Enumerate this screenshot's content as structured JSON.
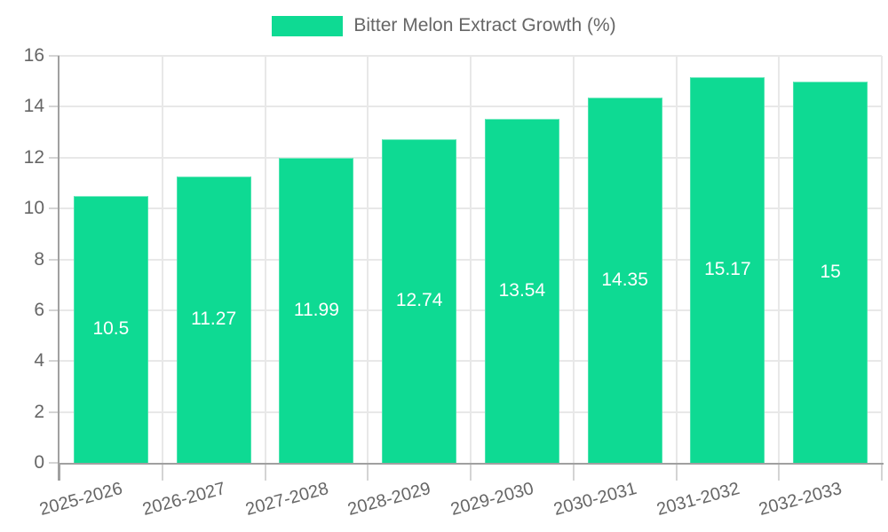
{
  "chart_data": {
    "type": "bar",
    "title": "Bitter Melon Extract Growth (%)",
    "legend_position": "top-center",
    "categories": [
      "2025-2026",
      "2026-2027",
      "2027-2028",
      "2028-2029",
      "2029-2030",
      "2030-2031",
      "2031-2032",
      "2032-2033"
    ],
    "values": [
      10.5,
      11.27,
      11.99,
      12.74,
      13.54,
      14.35,
      15.17,
      15
    ],
    "value_labels": [
      "10.5",
      "11.27",
      "11.99",
      "12.74",
      "13.54",
      "14.35",
      "15.17",
      "15"
    ],
    "xlabel": "",
    "ylabel": "",
    "ylim": [
      0,
      16
    ],
    "yticks": [
      0,
      2,
      4,
      6,
      8,
      10,
      12,
      14,
      16
    ],
    "grid": true,
    "colors": {
      "bar": "#0EDA93",
      "bar_label": "#FFFFFF",
      "axis_text": "#666666",
      "gridline": "#E8E8E8",
      "tick": "#D4D4D4",
      "axis_line": "#A0A0A0"
    }
  }
}
